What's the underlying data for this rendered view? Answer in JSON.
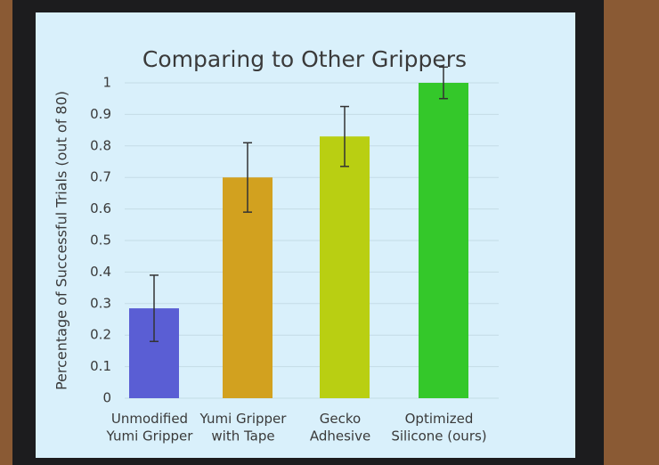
{
  "chart_data": {
    "type": "bar",
    "title": "Comparing to Other Grippers",
    "y_label": "Percentage of Successful Trials (out of 80)",
    "categories": [
      "Unmodified\nYumi Gripper",
      "Yumi Gripper\nwith Tape",
      "Gecko\nAdhesive",
      "Optimized\nSilicone (ours)"
    ],
    "values": [
      0.285,
      0.7,
      0.83,
      1.0
    ],
    "errors": [
      0.105,
      0.11,
      0.095,
      0.05
    ],
    "colors": [
      "#5a5ed4",
      "#d2a11f",
      "#b9cf12",
      "#34c82a"
    ],
    "ylim": [
      0,
      1.05
    ],
    "yticks": [
      0,
      0.1,
      0.2,
      0.3,
      0.4,
      0.5,
      0.6,
      0.7,
      0.8,
      0.9,
      1
    ],
    "grid": true
  }
}
